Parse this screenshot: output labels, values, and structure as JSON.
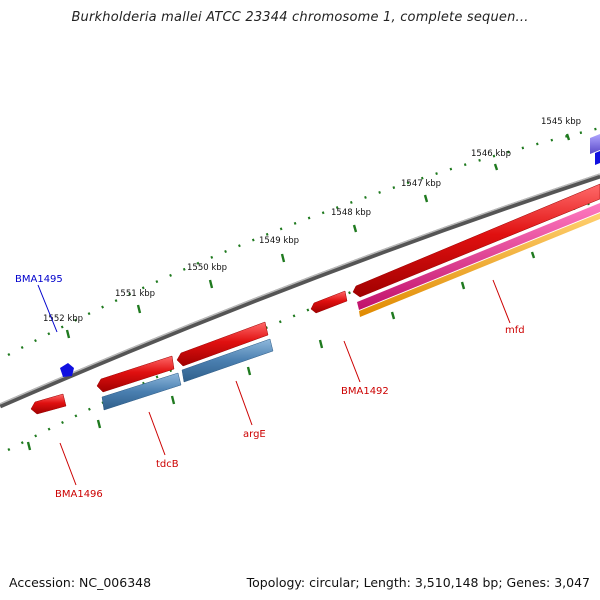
{
  "header": {
    "title": "Burkholderia mallei ATCC 23344 chromosome 1, complete sequen..."
  },
  "footer": {
    "accession": "Accession: NC_006348",
    "summary": "Topology: circular; Length: 3,510,148 bp; Genes: 3,047"
  },
  "colors": {
    "backbone": "#7a7a7a",
    "tick": "#1f7a1f",
    "gene_red": "#e01010",
    "gene_blue": "#4a7fb0",
    "gene_magenta": "#e0208a",
    "gene_orange": "#f0a020",
    "gene_purple": "#7a6ad8",
    "gene_darkblue": "#1010e0",
    "label_red": "#cc0000",
    "label_blue": "#0000cc"
  },
  "scale_labels": [
    "1545 kbp",
    "1546 kbp",
    "1547 kbp",
    "1548 kbp",
    "1549 kbp",
    "1550 kbp",
    "1551 kbp",
    "1552 kbp"
  ],
  "gene_labels": [
    "BMA1495",
    "mfd",
    "BMA1492",
    "argE",
    "tdcB",
    "BMA1496"
  ]
}
